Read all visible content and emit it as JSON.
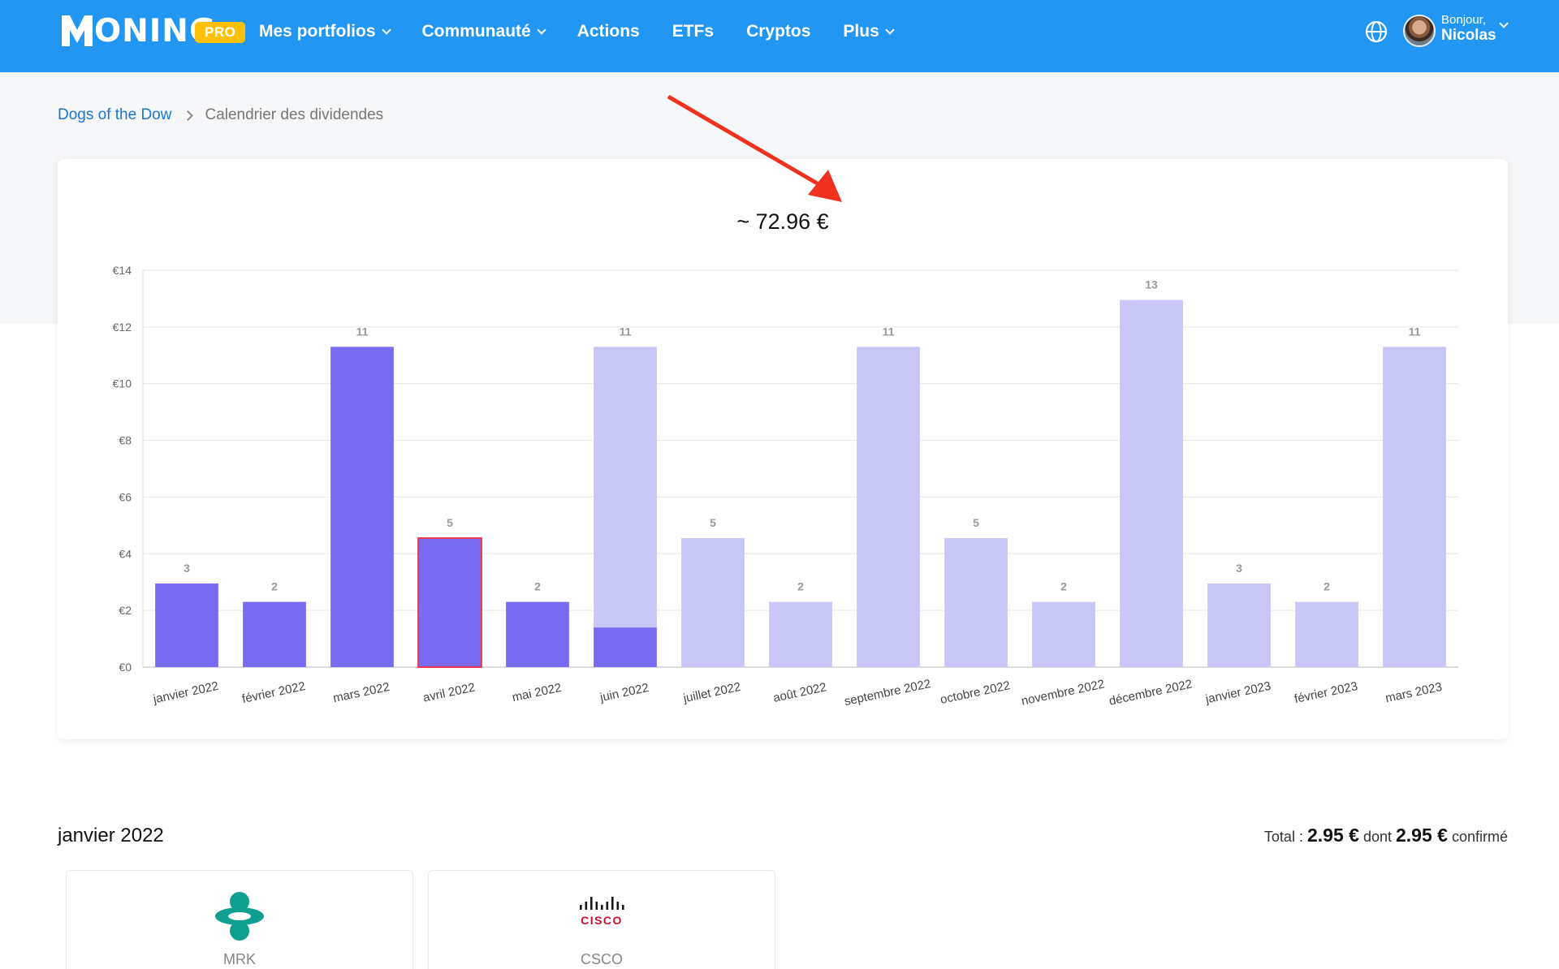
{
  "header": {
    "logo_text": "ONING",
    "badge": "PRO",
    "nav": [
      {
        "label": "Mes portfolios",
        "dropdown": true
      },
      {
        "label": "Communauté",
        "dropdown": true
      },
      {
        "label": "Actions",
        "dropdown": false
      },
      {
        "label": "ETFs",
        "dropdown": false
      },
      {
        "label": "Cryptos",
        "dropdown": false
      },
      {
        "label": "Plus",
        "dropdown": true
      }
    ],
    "greeting": "Bonjour,",
    "user_name": "Nicolas"
  },
  "breadcrumb": {
    "link": "Dogs of the Dow",
    "current": "Calendrier des dividendes"
  },
  "chart_data": {
    "type": "bar",
    "title": "~ 72.96 €",
    "categories": [
      "janvier 2022",
      "février 2022",
      "mars 2022",
      "avril 2022",
      "mai 2022",
      "juin 2022",
      "juillet 2022",
      "août 2022",
      "septembre 2022",
      "octobre 2022",
      "novembre 2022",
      "décembre 2022",
      "janvier 2023",
      "février 2023",
      "mars 2023"
    ],
    "series": [
      {
        "values": [
          2.95,
          2.3,
          11.3,
          4.55,
          2.3,
          1.4,
          0,
          0,
          0,
          0,
          0,
          0,
          0,
          0,
          0
        ],
        "color": "#7a6cf2"
      },
      {
        "values": [
          0,
          0,
          0,
          0,
          0,
          9.9,
          4.55,
          2.3,
          11.3,
          4.55,
          2.3,
          12.95,
          2.95,
          2.3,
          11.3
        ],
        "color": "#c9c6f8"
      }
    ],
    "data_labels": [
      "3",
      "2",
      "11",
      "5",
      "2",
      "11",
      "5",
      "2",
      "11",
      "5",
      "2",
      "13",
      "3",
      "2",
      "11"
    ],
    "y_ticks": [
      "€0",
      "€2",
      "€4",
      "€6",
      "€8",
      "€10",
      "€12",
      "€14"
    ],
    "ylim": [
      0,
      14
    ],
    "highlighted_category": "avril 2022",
    "highlight_color": "#e8394a",
    "grid": true
  },
  "annotation_color": "#f0311d",
  "month": {
    "title": "janvier 2022",
    "total_prefix": "Total :",
    "total_value": "2.95 €",
    "dont": "dont",
    "confirmed_value": "2.95 €",
    "confirmed_label": "confirmé"
  },
  "stocks": [
    {
      "ticker": "MRK",
      "logo": "merck-logo",
      "color": "#0f9f8e"
    },
    {
      "ticker": "CSCO",
      "logo": "cisco-logo",
      "color": "#c8102e",
      "logo_text": "CISCO"
    }
  ]
}
